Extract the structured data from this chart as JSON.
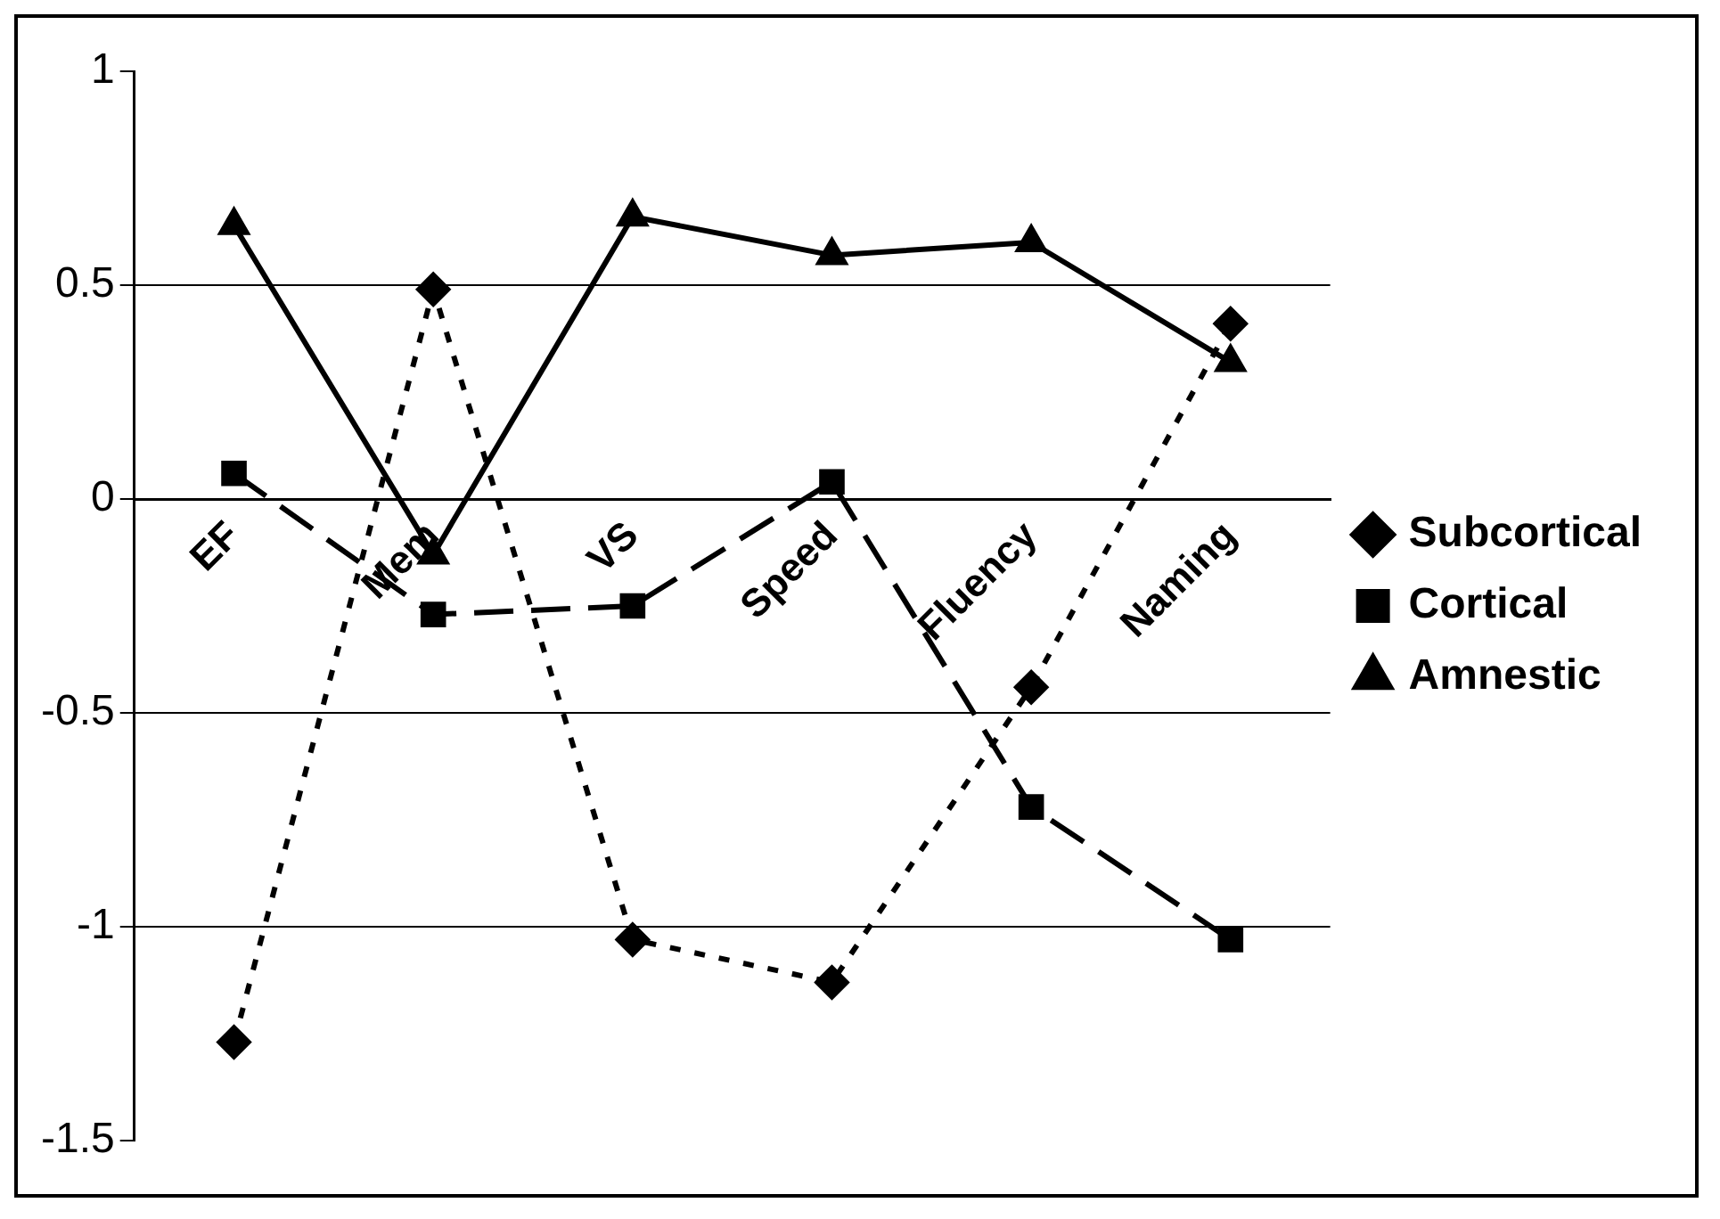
{
  "chart_data": {
    "type": "line",
    "categories": [
      "EF",
      "Mem",
      "VS",
      "Speed",
      "Fluency",
      "Naming"
    ],
    "series": [
      {
        "name": "Subcortical",
        "color": "#000000",
        "marker": "diamond",
        "line_style": "dotted",
        "values": [
          -1.27,
          0.49,
          -1.03,
          -1.13,
          -0.44,
          0.41
        ]
      },
      {
        "name": "Cortical",
        "color": "#000000",
        "marker": "square",
        "line_style": "dashed",
        "values": [
          0.06,
          -0.27,
          -0.25,
          0.04,
          -0.72,
          -1.03
        ]
      },
      {
        "name": "Amnestic",
        "color": "#000000",
        "marker": "triangle",
        "line_style": "solid",
        "values": [
          0.64,
          -0.13,
          0.66,
          0.57,
          0.6,
          0.32
        ]
      }
    ],
    "ylim": [
      -1.5,
      1
    ],
    "yticks": [
      -1.5,
      -1,
      -0.5,
      0,
      0.5,
      1
    ],
    "grid": "y",
    "legend": "right"
  }
}
